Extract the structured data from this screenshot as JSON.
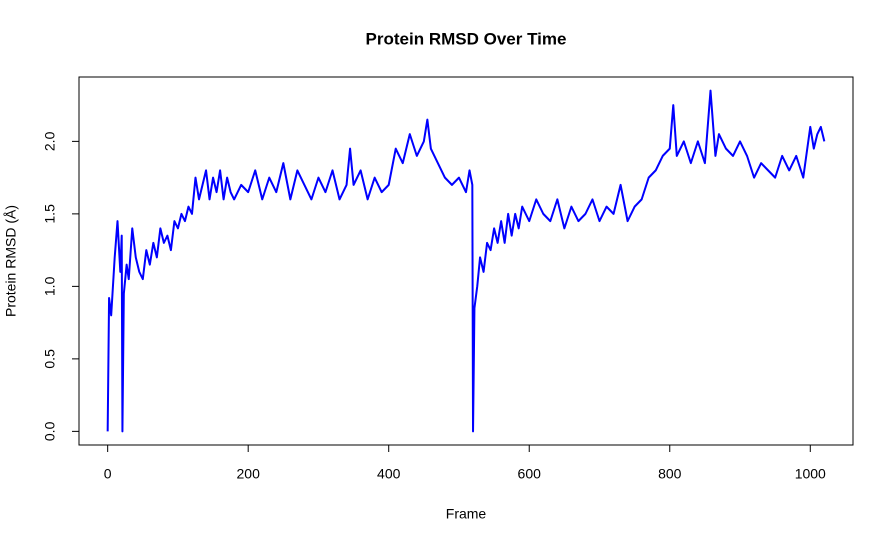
{
  "chart_data": {
    "type": "line",
    "title": "Protein RMSD Over Time",
    "x_label": "Frame",
    "y_label": "Protein RMSD (Å)",
    "x": [
      0,
      2,
      5,
      10,
      14,
      18,
      20,
      21,
      23,
      27,
      30,
      35,
      40,
      45,
      50,
      55,
      60,
      65,
      70,
      75,
      80,
      85,
      90,
      95,
      100,
      105,
      110,
      115,
      120,
      125,
      130,
      135,
      140,
      145,
      150,
      155,
      160,
      165,
      170,
      175,
      180,
      190,
      200,
      210,
      220,
      230,
      240,
      250,
      260,
      270,
      280,
      290,
      300,
      310,
      320,
      330,
      340,
      345,
      350,
      360,
      370,
      380,
      390,
      400,
      410,
      420,
      430,
      440,
      450,
      455,
      460,
      470,
      480,
      490,
      500,
      510,
      515,
      519,
      520,
      522,
      526,
      530,
      535,
      540,
      545,
      550,
      555,
      560,
      565,
      570,
      575,
      580,
      585,
      590,
      600,
      610,
      620,
      630,
      640,
      650,
      660,
      670,
      680,
      690,
      700,
      710,
      720,
      730,
      740,
      750,
      760,
      770,
      780,
      790,
      800,
      805,
      810,
      820,
      830,
      840,
      850,
      858,
      865,
      870,
      880,
      890,
      900,
      910,
      920,
      930,
      940,
      950,
      960,
      970,
      980,
      990,
      1000,
      1005,
      1010,
      1015,
      1020
    ],
    "series": [
      {
        "name": "RMSD",
        "color": "#0000ff",
        "values": [
          0,
          0.92,
          0.8,
          1.2,
          1.45,
          1.1,
          1.35,
          0,
          0.95,
          1.15,
          1.05,
          1.4,
          1.2,
          1.1,
          1.05,
          1.25,
          1.15,
          1.3,
          1.2,
          1.4,
          1.3,
          1.35,
          1.25,
          1.45,
          1.4,
          1.5,
          1.45,
          1.55,
          1.5,
          1.75,
          1.6,
          1.7,
          1.8,
          1.6,
          1.75,
          1.65,
          1.8,
          1.6,
          1.75,
          1.65,
          1.6,
          1.7,
          1.65,
          1.8,
          1.6,
          1.75,
          1.65,
          1.85,
          1.6,
          1.8,
          1.7,
          1.6,
          1.75,
          1.65,
          1.8,
          1.6,
          1.7,
          1.95,
          1.7,
          1.8,
          1.6,
          1.75,
          1.65,
          1.7,
          1.95,
          1.85,
          2.05,
          1.9,
          2.0,
          2.15,
          1.95,
          1.85,
          1.75,
          1.7,
          1.75,
          1.65,
          1.8,
          1.7,
          0,
          0.85,
          1.0,
          1.2,
          1.1,
          1.3,
          1.25,
          1.4,
          1.3,
          1.45,
          1.3,
          1.5,
          1.35,
          1.5,
          1.4,
          1.55,
          1.45,
          1.6,
          1.5,
          1.45,
          1.6,
          1.4,
          1.55,
          1.45,
          1.5,
          1.6,
          1.45,
          1.55,
          1.5,
          1.7,
          1.45,
          1.55,
          1.6,
          1.75,
          1.8,
          1.9,
          1.95,
          2.25,
          1.9,
          2.0,
          1.85,
          2.0,
          1.85,
          2.35,
          1.9,
          2.05,
          1.95,
          1.9,
          2.0,
          1.9,
          1.75,
          1.85,
          1.8,
          1.75,
          1.9,
          1.8,
          1.9,
          1.75,
          2.1,
          1.95,
          2.05,
          2.1,
          2.0
        ]
      }
    ],
    "xlim": [
      -40.8,
      1060.8
    ],
    "ylim": [
      -0.094,
      2.444
    ],
    "xticks": [
      0,
      200,
      400,
      600,
      800,
      1000
    ],
    "yticks": [
      {
        "value": 0,
        "label": "0.0"
      },
      {
        "value": 0.5,
        "label": "0.5"
      },
      {
        "value": 1,
        "label": "1.0"
      },
      {
        "value": 1.5,
        "label": "1.5"
      },
      {
        "value": 2,
        "label": "2.0"
      }
    ]
  }
}
